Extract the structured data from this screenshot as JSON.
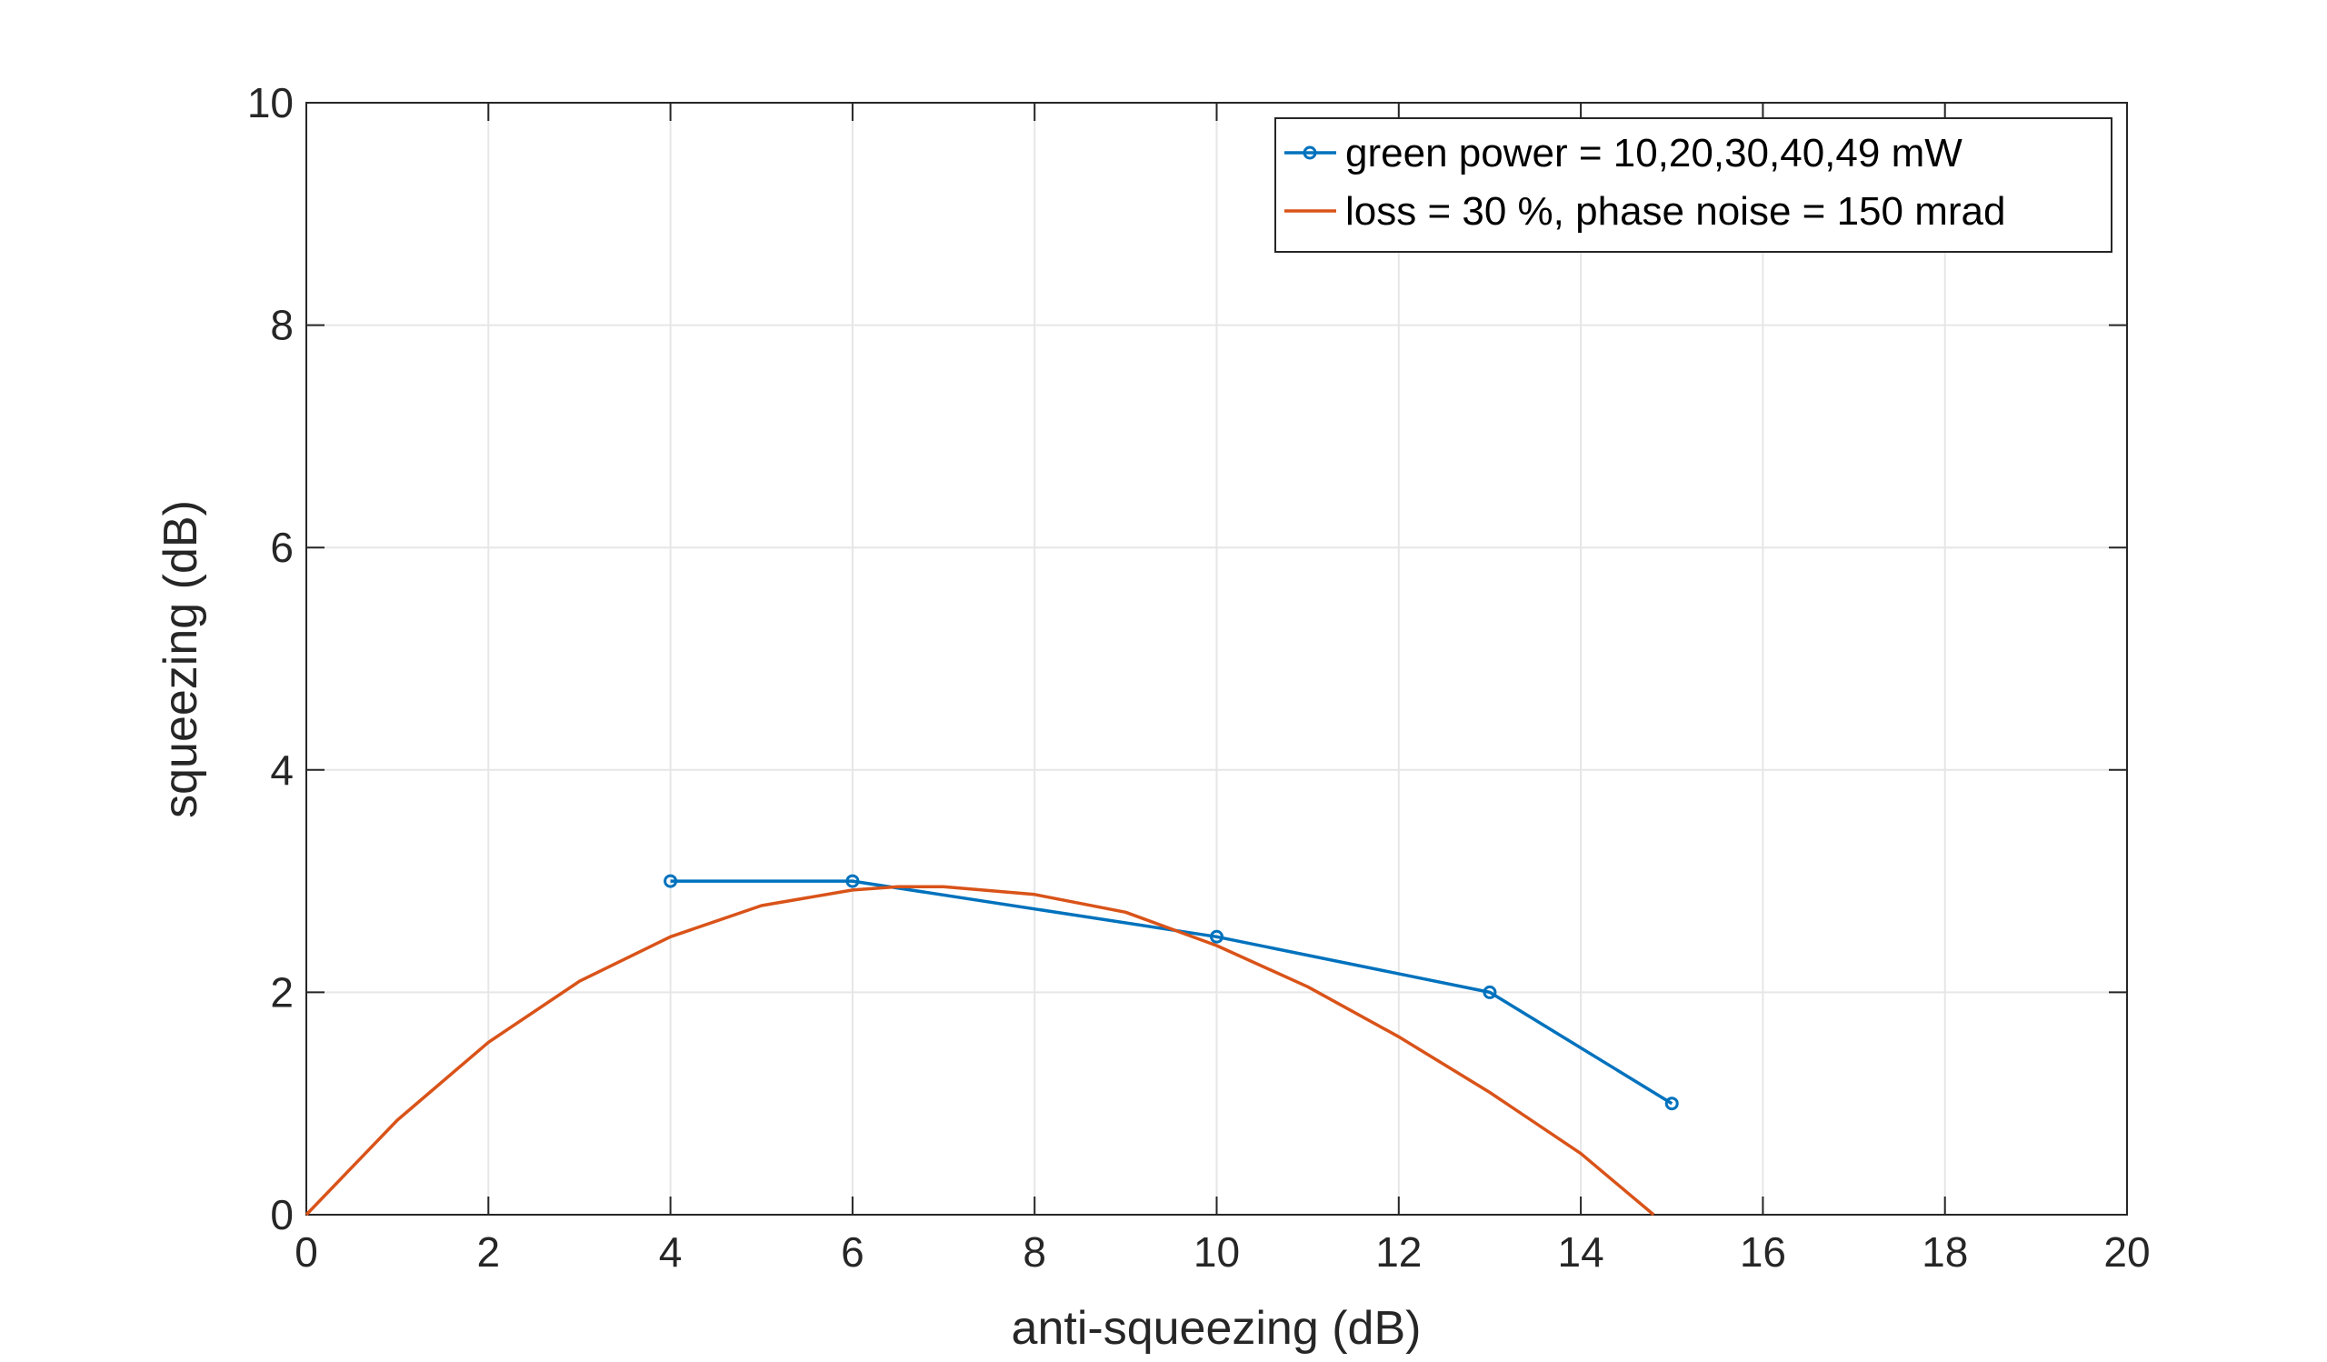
{
  "chart_data": {
    "type": "line",
    "xlabel": "anti-squeezing (dB)",
    "ylabel": "squeezing (dB)",
    "xlim": [
      0,
      20
    ],
    "ylim": [
      0,
      10
    ],
    "xticks": [
      "0",
      "2",
      "4",
      "6",
      "8",
      "10",
      "12",
      "14",
      "16",
      "18",
      "20"
    ],
    "yticks": [
      "0",
      "2",
      "4",
      "6",
      "8",
      "10"
    ],
    "grid": true,
    "legend_position": "top-right",
    "series": [
      {
        "name": "green power = 10,20,30,40,49 mW",
        "color": "#0072BD",
        "marker": "circle",
        "x": [
          4,
          6,
          10,
          13,
          15
        ],
        "y": [
          3.0,
          3.0,
          2.5,
          2.0,
          1.0
        ]
      },
      {
        "name": "loss = 30 %, phase noise = 150 mrad",
        "color": "#D95319",
        "marker": "none",
        "x": [
          0,
          1,
          2,
          3,
          4,
          5,
          6,
          6.5,
          7,
          8,
          9,
          10,
          11,
          12,
          13,
          14,
          14.8
        ],
        "y": [
          0,
          0.85,
          1.55,
          2.1,
          2.5,
          2.78,
          2.92,
          2.95,
          2.95,
          2.88,
          2.72,
          2.42,
          2.05,
          1.6,
          1.1,
          0.55,
          0
        ]
      }
    ]
  }
}
